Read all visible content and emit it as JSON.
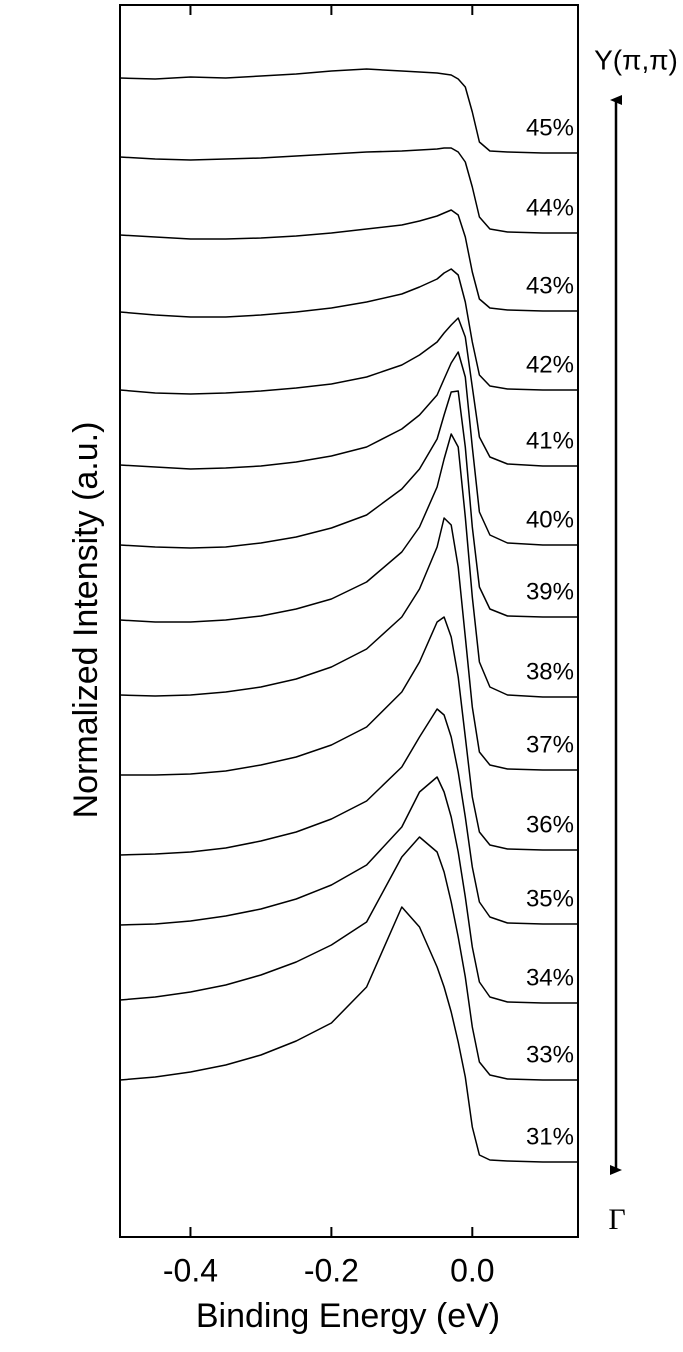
{
  "chart_data": {
    "type": "waterfall-line",
    "xlabel": "Binding Energy (eV)",
    "ylabel": "Normalized Intensity (a.u.)",
    "annotations": [
      "Y(π,π)",
      "Γ"
    ],
    "color": "#000000",
    "xlim": [
      -0.5,
      0.15
    ],
    "ylim": [
      0,
      1232
    ],
    "xticks": [
      -0.4,
      -0.2,
      {
        "value": 0,
        "label": "0.0"
      }
    ],
    "x": [
      -0.5,
      -0.45,
      -0.4,
      -0.35,
      -0.3,
      -0.25,
      -0.2,
      -0.15,
      -0.1,
      -0.075,
      -0.05,
      -0.04,
      -0.03,
      -0.02,
      -0.01,
      0,
      0.01,
      0.025,
      0.05,
      0.1,
      0.15
    ],
    "series": [
      {
        "name": "45%",
        "values": [
          1159,
          1158,
          1160,
          1159,
          1161,
          1163,
          1166,
          1168,
          1166,
          1165,
          1164,
          1163,
          1162,
          1158,
          1150,
          1125,
          1095,
          1086,
          1085,
          1084,
          1084
        ]
      },
      {
        "name": "44%",
        "values": [
          1080,
          1078,
          1077,
          1078,
          1079,
          1081,
          1083,
          1085,
          1086,
          1087,
          1088,
          1089,
          1089,
          1085,
          1075,
          1050,
          1020,
          1008,
          1005,
          1004,
          1004
        ]
      },
      {
        "name": "43%",
        "values": [
          1002,
          1000,
          998,
          998,
          999,
          1001,
          1004,
          1008,
          1012,
          1016,
          1021,
          1024,
          1027,
          1022,
          1000,
          965,
          938,
          929,
          927,
          926,
          926
        ]
      },
      {
        "name": "42%",
        "values": [
          925,
          922,
          920,
          920,
          922,
          925,
          929,
          935,
          943,
          950,
          958,
          964,
          968,
          962,
          935,
          895,
          862,
          851,
          848,
          847,
          847
        ]
      },
      {
        "name": "41%",
        "values": [
          847,
          844,
          843,
          844,
          846,
          849,
          853,
          860,
          872,
          882,
          895,
          904,
          912,
          919,
          900,
          850,
          800,
          780,
          773,
          771,
          771
        ]
      },
      {
        "name": "40%",
        "values": [
          772,
          770,
          768,
          769,
          771,
          775,
          781,
          790,
          808,
          822,
          842,
          858,
          874,
          885,
          860,
          790,
          725,
          702,
          694,
          692,
          692
        ]
      },
      {
        "name": "39%",
        "values": [
          692,
          690,
          689,
          690,
          694,
          700,
          709,
          722,
          748,
          768,
          798,
          822,
          845,
          846,
          790,
          710,
          650,
          628,
          621,
          620,
          620
        ]
      },
      {
        "name": "38%",
        "values": [
          617,
          615,
          615,
          617,
          621,
          628,
          638,
          655,
          685,
          710,
          750,
          778,
          803,
          790,
          720,
          640,
          575,
          550,
          542,
          540,
          540
        ]
      },
      {
        "name": "37%",
        "values": [
          542,
          541,
          542,
          545,
          550,
          558,
          570,
          588,
          620,
          648,
          690,
          719,
          712,
          670,
          600,
          530,
          485,
          472,
          468,
          467,
          467
        ]
      },
      {
        "name": "36%",
        "values": [
          462,
          462,
          463,
          466,
          472,
          480,
          492,
          510,
          545,
          575,
          615,
          620,
          600,
          560,
          500,
          440,
          405,
          392,
          388,
          387,
          387
        ]
      },
      {
        "name": "35%",
        "values": [
          382,
          383,
          385,
          389,
          396,
          405,
          418,
          436,
          470,
          500,
          528,
          522,
          500,
          465,
          420,
          370,
          335,
          320,
          314,
          313,
          313
        ]
      },
      {
        "name": "34%",
        "values": [
          312,
          313,
          316,
          321,
          328,
          338,
          352,
          372,
          410,
          445,
          460,
          445,
          420,
          385,
          340,
          290,
          255,
          240,
          235,
          234,
          234
        ]
      },
      {
        "name": "33%",
        "values": [
          237,
          240,
          245,
          252,
          262,
          275,
          292,
          315,
          380,
          400,
          385,
          365,
          335,
          300,
          260,
          210,
          175,
          162,
          158,
          157,
          157
        ]
      },
      {
        "name": "31%",
        "values": [
          157,
          160,
          165,
          172,
          182,
          196,
          214,
          250,
          330,
          310,
          270,
          250,
          225,
          195,
          160,
          110,
          82,
          77,
          76,
          75,
          75
        ]
      }
    ]
  }
}
